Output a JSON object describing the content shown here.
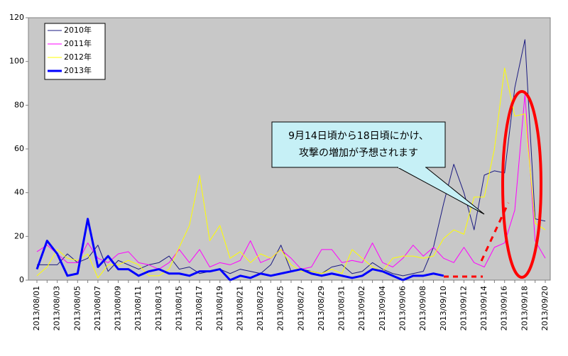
{
  "chart_data": {
    "type": "line",
    "categories": [
      "2013/08/01",
      null,
      "2013/08/03",
      null,
      "2013/08/05",
      null,
      "2013/08/07",
      null,
      "2013/08/09",
      null,
      "2013/08/11",
      null,
      "2013/08/13",
      null,
      "2013/08/15",
      null,
      "2013/08/17",
      null,
      "2013/08/19",
      null,
      "2013/08/21",
      null,
      "2013/08/23",
      null,
      "2013/08/25",
      null,
      "2013/08/27",
      null,
      "2013/08/29",
      null,
      "2013/08/31",
      null,
      "2013/09/02",
      null,
      "2013/09/04",
      null,
      "2013/09/06",
      null,
      "2013/09/08",
      null,
      "2013/09/10",
      null,
      "2013/09/12",
      null,
      "2013/09/14",
      null,
      "2013/09/16",
      null,
      "2013/09/18",
      null,
      "2013/09/20"
    ],
    "series": [
      {
        "name": "2010年",
        "color": "#1a1a80",
        "width": 1,
        "values": [
          7,
          7,
          7,
          12,
          8,
          10,
          16,
          4,
          9,
          7,
          5,
          7,
          8,
          11,
          5,
          6,
          3,
          4,
          5,
          3,
          5,
          4,
          3,
          7,
          16,
          4,
          5,
          4,
          3,
          6,
          7,
          3,
          4,
          8,
          5,
          3,
          2,
          3,
          4,
          15,
          35,
          53,
          40,
          23,
          48,
          50,
          49,
          88,
          110,
          28,
          27
        ]
      },
      {
        "name": "2011年",
        "color": "#ff00ff",
        "width": 1,
        "values": [
          13,
          16,
          12,
          8,
          8,
          17,
          10,
          8,
          12,
          13,
          8,
          7,
          5,
          8,
          14,
          8,
          14,
          6,
          8,
          7,
          9,
          18,
          8,
          10,
          14,
          10,
          5,
          6,
          14,
          14,
          8,
          9,
          8,
          17,
          8,
          6,
          10,
          16,
          11,
          15,
          10,
          8,
          15,
          8,
          6,
          15,
          17,
          32,
          85,
          18,
          10
        ]
      },
      {
        "name": "2012年",
        "color": "#ffff00",
        "width": 1,
        "values": [
          2,
          6,
          14,
          10,
          9,
          12,
          1,
          7,
          7,
          9,
          7,
          2,
          2,
          5,
          15,
          25,
          48,
          18,
          25,
          10,
          13,
          8,
          12,
          10,
          14,
          7,
          4,
          4,
          3,
          5,
          3,
          14,
          10,
          6,
          4,
          10,
          11,
          11,
          10,
          11,
          19,
          23,
          21,
          38,
          38,
          60,
          97,
          75,
          76,
          26,
          23
        ]
      },
      {
        "name": "2013年",
        "color": "#0000ff",
        "width": 3,
        "values": [
          5,
          18,
          12,
          2,
          3,
          28,
          6,
          11,
          5,
          5,
          2,
          4,
          5,
          3,
          3,
          2,
          4,
          4,
          5,
          0,
          2,
          1,
          3,
          2,
          3,
          4,
          5,
          3,
          2,
          3,
          2,
          1,
          2,
          5,
          4,
          2,
          0,
          2,
          2,
          3,
          2,
          null,
          null,
          null,
          null,
          null,
          null,
          null,
          null,
          null,
          null
        ]
      }
    ],
    "ylim": [
      0,
      120
    ],
    "yticks": [
      0,
      20,
      40,
      60,
      80,
      100,
      120
    ],
    "annotation": [
      "9月14日頃から18日頃にかけ、",
      "攻撃の増加が予想されます"
    ]
  }
}
